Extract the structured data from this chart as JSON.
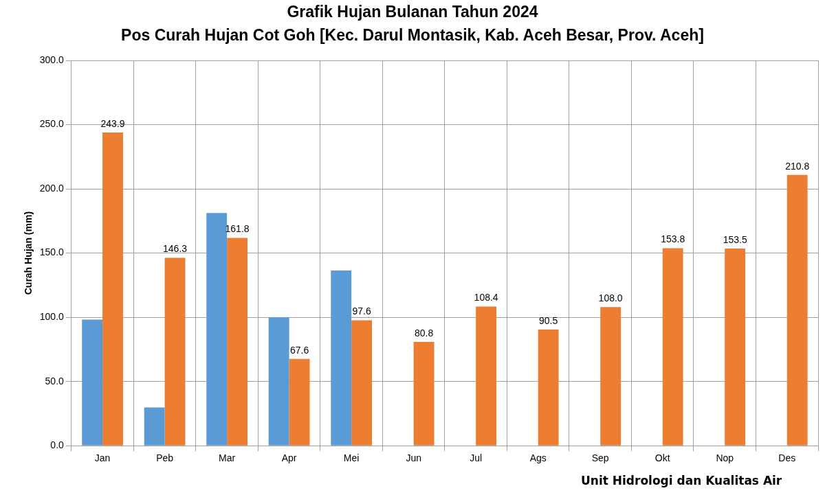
{
  "chart_data": {
    "type": "bar",
    "title": "Grafik Hujan Bulanan Tahun 2024",
    "subtitle": "Pos Curah Hujan Cot Goh [Kec. Darul Montasik, Kab. Aceh Besar, Prov. Aceh]",
    "ylabel": "Curah Hujan (mm)",
    "categories": [
      "Jan",
      "Peb",
      "Mar",
      "Apr",
      "Mei",
      "Jun",
      "Jul",
      "Ags",
      "Sep",
      "Okt",
      "Nop",
      "Des"
    ],
    "series": [
      {
        "color": "#5b9bd5",
        "values": [
          98.2,
          29.8,
          181.2,
          100.0,
          136.4,
          null,
          null,
          null,
          null,
          null,
          null,
          null
        ]
      },
      {
        "color": "#ed7d31",
        "values": [
          243.9,
          146.3,
          161.8,
          67.6,
          97.6,
          80.8,
          108.4,
          90.5,
          108.0,
          153.8,
          153.5,
          210.8
        ],
        "value_labels": [
          "243.9",
          "146.3",
          "161.8",
          "67.6",
          "97.6",
          "80.8",
          "108.4",
          "90.5",
          "108.0",
          "153.8",
          "153.5",
          "210.8"
        ]
      }
    ],
    "ylim": [
      0,
      300
    ],
    "yticks": [
      {
        "value": 0,
        "label": "0.0"
      },
      {
        "value": 50,
        "label": "50.0"
      },
      {
        "value": 100,
        "label": "100.0"
      },
      {
        "value": 150,
        "label": "150.0"
      },
      {
        "value": 200,
        "label": "200.0"
      },
      {
        "value": 250,
        "label": "250.0"
      },
      {
        "value": 300,
        "label": "300.0"
      }
    ],
    "grid": true,
    "legend": false,
    "annotations": [
      "Unit Hidrologi dan Kualitas Air"
    ]
  }
}
